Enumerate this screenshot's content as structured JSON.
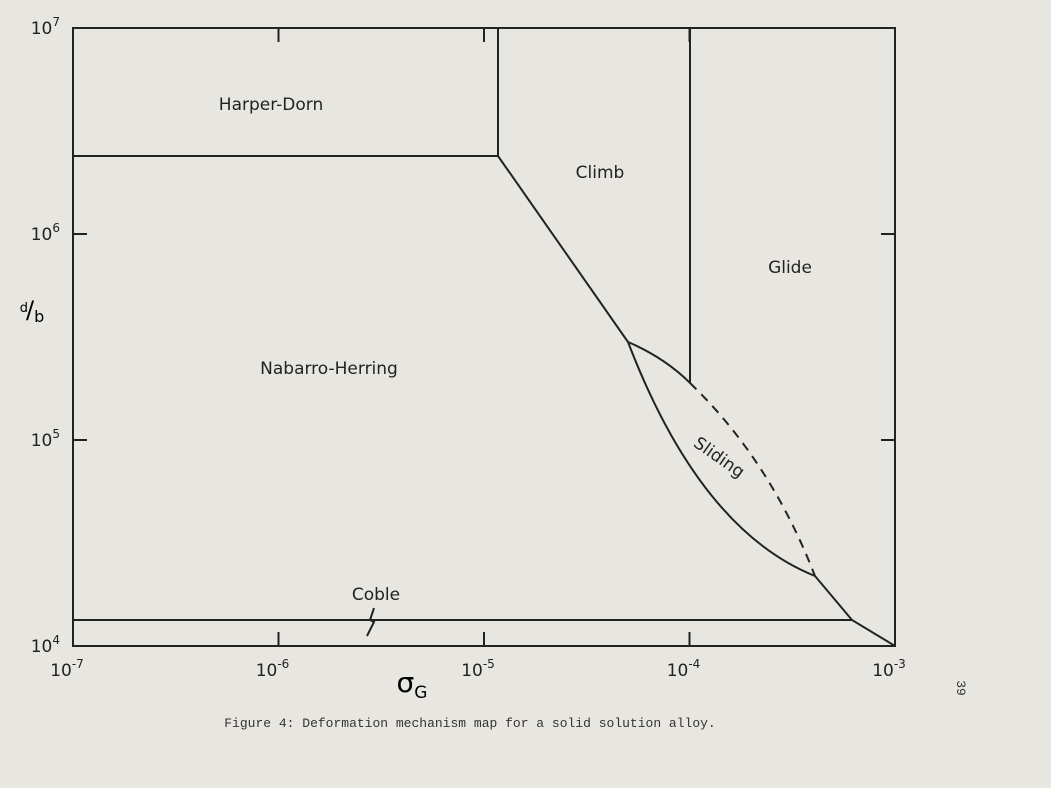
{
  "figure": {
    "x_axis": {
      "label_main": "σ",
      "label_sub": "G",
      "ticks": [
        {
          "base": "10",
          "exp": "-7"
        },
        {
          "base": "10",
          "exp": "-6"
        },
        {
          "base": "10",
          "exp": "-5"
        },
        {
          "base": "10",
          "exp": "-4"
        },
        {
          "base": "10",
          "exp": "-3"
        }
      ]
    },
    "y_axis": {
      "label_main": "d",
      "label_sub": "b",
      "ticks": [
        {
          "base": "10",
          "exp": "4"
        },
        {
          "base": "10",
          "exp": "5"
        },
        {
          "base": "10",
          "exp": "6"
        },
        {
          "base": "10",
          "exp": "7"
        }
      ]
    },
    "regions": {
      "harper_dorn": "Harper-Dorn",
      "climb": "Climb",
      "glide": "Glide",
      "nabarro_herring": "Nabarro-Herring",
      "sliding": "Sliding",
      "coble": "Coble"
    }
  },
  "caption": "Figure 4:  Deformation mechanism map for a solid solution alloy.",
  "page_number": "39"
}
